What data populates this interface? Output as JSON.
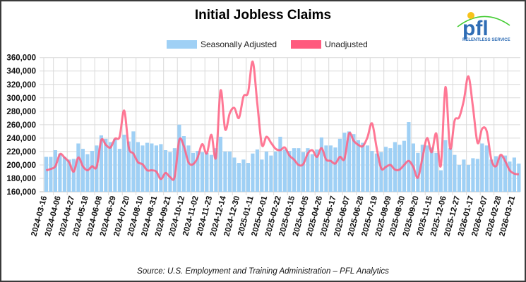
{
  "chart_data": {
    "type": "bar+line",
    "title": "Initial Jobless Claims",
    "source": "Source: U.S. Employment and Training Administration – PFL Analytics",
    "ylim": [
      160000,
      360000
    ],
    "y_ticks": [
      "160,000",
      "180,000",
      "200,000",
      "220,000",
      "240,000",
      "260,000",
      "280,000",
      "300,000",
      "320,000",
      "340,000",
      "360,000"
    ],
    "grid": true,
    "legend_position": "top",
    "x_tick_every": 3,
    "x_tick_labels": [
      "2024-03-16",
      "2024-04-06",
      "2024-04-27",
      "2024-05-18",
      "2024-06-08",
      "2024-06-29",
      "2024-07-20",
      "2024-08-10",
      "2024-08-31",
      "2024-09-21",
      "2024-10-12",
      "2024-11-02",
      "2024-11-23",
      "2024-12-14",
      "2024-12-30",
      "2025-01-11",
      "2025-02-01",
      "2025-02-22",
      "2025-03-15",
      "2025-04-05",
      "2025-04-26",
      "2025-05-17",
      "2025-06-07",
      "2025-06-28",
      "2025-07-19",
      "2025-08-09",
      "2025-08-30",
      "2025-09-20",
      "2025-11-15",
      "2025-12-06",
      "2025-12-27",
      "2026-01-17",
      "2026-02-07",
      "2026-02-28",
      "2026-03-21"
    ],
    "series": [
      {
        "name": "Seasonally Adjusted",
        "type": "bar",
        "color": "#9fd0f5",
        "values": [
          212000,
          212000,
          222000,
          217000,
          212000,
          208000,
          209000,
          232000,
          224000,
          216000,
          221000,
          229000,
          244000,
          239000,
          234000,
          239000,
          224000,
          245000,
          235000,
          250000,
          234000,
          229000,
          233000,
          232000,
          229000,
          231000,
          222000,
          219000,
          225000,
          260000,
          243000,
          229000,
          218000,
          221000,
          219000,
          218000,
          215000,
          225000,
          242000,
          220000,
          220000,
          211000,
          203000,
          208000,
          203000,
          217000,
          223000,
          208000,
          220000,
          214000,
          220000,
          242000,
          223000,
          221000,
          225000,
          225000,
          219000,
          225000,
          216000,
          223000,
          241000,
          229000,
          229000,
          226000,
          239000,
          248000,
          250000,
          246000,
          237000,
          233000,
          229000,
          221000,
          217000,
          219000,
          227000,
          225000,
          234000,
          230000,
          236000,
          264000,
          232000,
          218000,
          230000,
          229000,
          226000,
          218000,
          192000,
          237000,
          225000,
          215000,
          200000,
          208000,
          200000,
          210000,
          209000,
          232000,
          229000,
          208000,
          213000,
          214000,
          214000,
          205000,
          211000,
          202000
        ]
      },
      {
        "name": "Unadjusted",
        "type": "line",
        "color": "#ff5a7e",
        "values": [
          192000,
          194000,
          198000,
          216000,
          211000,
          204000,
          190000,
          211000,
          198000,
          192000,
          198000,
          197000,
          237000,
          230000,
          226000,
          239000,
          242000,
          281000,
          226000,
          217000,
          204000,
          201000,
          192000,
          192000,
          190000,
          179000,
          188000,
          182000,
          182000,
          237000,
          228000,
          204000,
          201000,
          211000,
          231000,
          217000,
          245000,
          211000,
          311000,
          253000,
          277000,
          285000,
          270000,
          302000,
          308000,
          354000,
          292000,
          230000,
          242000,
          233000,
          224000,
          222000,
          226000,
          214000,
          208000,
          200000,
          201000,
          217000,
          222000,
          212000,
          225000,
          208000,
          206000,
          202000,
          212000,
          209000,
          247000,
          236000,
          230000,
          228000,
          241000,
          262000,
          226000,
          195000,
          197000,
          200000,
          193000,
          193000,
          200000,
          206000,
          197000,
          181000,
          211000,
          240000,
          219000,
          247000,
          199000,
          316000,
          225000,
          266000,
          271000,
          296000,
          332000,
          286000,
          233000,
          254000,
          250000,
          208000,
          198000,
          215000,
          206000,
          192000,
          187000,
          186000
        ]
      }
    ]
  },
  "logo": {
    "wordmark": "pfl",
    "tagline": "RELENTLESS SERVICE"
  }
}
